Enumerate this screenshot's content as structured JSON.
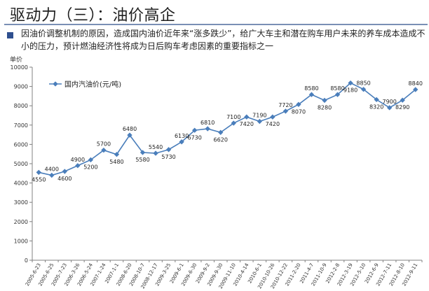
{
  "slide": {
    "title": "驱动力（三）：油价高企",
    "subtitle": "因油价调整机制的原因，造成国内油价近年来“涨多跌少”，给广大车主和潜在购车用户未来的养车成本造成不小的压力，预计燃油经济性将成为日后购车考虑因素的重要指标之一"
  },
  "chart_data": {
    "type": "line",
    "ylabel": "单价",
    "ylim": [
      0,
      10000
    ],
    "yticks": [
      0,
      1000,
      2000,
      3000,
      4000,
      5000,
      6000,
      7000,
      8000,
      9000,
      10000
    ],
    "legend": {
      "label": "国内汽油价(元/吨)",
      "position": "top-left"
    },
    "grid": false,
    "color": "#4a7ebb",
    "categories": [
      "2005-6-23",
      "2005-6-25",
      "2005-7-23",
      "2006-3-26",
      "2006-5-24",
      "2007-1-24",
      "2007-1-1",
      "2008-6-20",
      "2008-10-7",
      "2008-12-17",
      "2009-3-25",
      "2009-6-1",
      "2009-6-30",
      "2009-9-2",
      "2009-9-30",
      "2009-11-10",
      "2010-4-14",
      "2010-6-1",
      "2010-10-26",
      "2010-12-22",
      "2011-2-20",
      "2011-4-7",
      "2011-10-9",
      "2012-2-8",
      "2012-3-19",
      "2012-5-10",
      "2012-6-9",
      "2012-7-11",
      "2012-8-10",
      "2012-9-11"
    ],
    "series": [
      {
        "name": "国内汽油价(元/吨)",
        "values": [
          4550,
          4400,
          4600,
          4900,
          5200,
          5700,
          5480,
          6480,
          5580,
          5540,
          5730,
          6130,
          6730,
          6810,
          6620,
          7100,
          7420,
          7190,
          7420,
          7720,
          8070,
          8580,
          8280,
          8580,
          9180,
          8850,
          8320,
          7900,
          8290,
          8840
        ]
      }
    ],
    "label_side": [
      "below",
      "above",
      "below",
      "above",
      "below",
      "above",
      "below",
      "above",
      "below",
      "above",
      "below",
      "above",
      "below",
      "above",
      "below",
      "above",
      "below",
      "above",
      "below",
      "above",
      "below",
      "above",
      "below",
      "above",
      "below",
      "above",
      "below",
      "above",
      "below",
      "above"
    ]
  }
}
